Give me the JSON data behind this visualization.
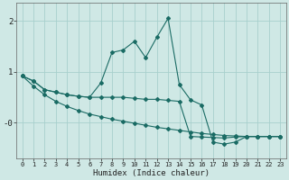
{
  "background_color": "#cfe8e5",
  "grid_color": "#a8d0cc",
  "line_color": "#1a6b64",
  "xlabel": "Humidex (Indice chaleur)",
  "x": [
    0,
    1,
    2,
    3,
    4,
    5,
    6,
    7,
    8,
    9,
    10,
    11,
    12,
    13,
    14,
    15,
    16,
    17,
    18,
    19,
    20,
    21,
    22,
    23
  ],
  "line1": [
    0.92,
    0.82,
    0.65,
    0.6,
    0.55,
    0.52,
    0.5,
    0.78,
    1.38,
    1.43,
    1.6,
    1.28,
    1.68,
    2.05,
    0.75,
    0.45,
    0.35,
    -0.38,
    -0.42,
    -0.38,
    -0.27,
    -0.27,
    -0.27,
    -0.27
  ],
  "line2": [
    0.92,
    0.82,
    0.65,
    0.6,
    0.55,
    0.52,
    0.5,
    0.5,
    0.5,
    0.5,
    0.48,
    0.46,
    0.46,
    0.44,
    0.42,
    -0.27,
    -0.28,
    -0.29,
    -0.3,
    -0.28,
    -0.27,
    -0.27,
    -0.27,
    -0.27
  ],
  "line3": [
    0.92,
    0.72,
    0.55,
    0.42,
    0.32,
    0.24,
    0.17,
    0.12,
    0.07,
    0.03,
    -0.01,
    -0.05,
    -0.09,
    -0.12,
    -0.15,
    -0.18,
    -0.21,
    -0.23,
    -0.25,
    -0.26,
    -0.27,
    -0.27,
    -0.27,
    -0.27
  ],
  "ylim": [
    -0.7,
    2.35
  ],
  "xlim": [
    -0.5,
    23.5
  ],
  "ytick_positions": [
    0.0,
    1.0,
    2.0
  ],
  "ytick_labels": [
    "-0",
    "1",
    "2"
  ],
  "xticks": [
    0,
    1,
    2,
    3,
    4,
    5,
    6,
    7,
    8,
    9,
    10,
    11,
    12,
    13,
    14,
    15,
    16,
    17,
    18,
    19,
    20,
    21,
    22,
    23
  ]
}
